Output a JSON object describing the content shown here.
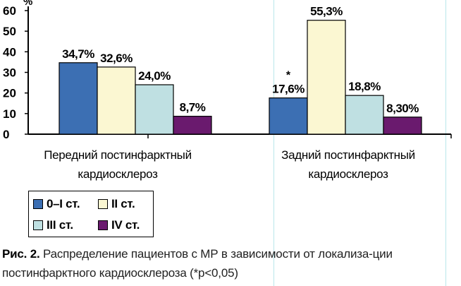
{
  "chart_data": {
    "type": "bar",
    "y_unit_label": "%",
    "ylim": [
      0,
      60
    ],
    "yticks": [
      0,
      10,
      20,
      30,
      40,
      50,
      60
    ],
    "grid": false,
    "categories": [
      [
        "Передний постинфарктный",
        "кардиосклероз"
      ],
      [
        "Задний постинфарктный",
        "кардиосклероз"
      ]
    ],
    "series": [
      {
        "name": "0–I ст.",
        "color": "#3c6fb3",
        "values": [
          34.7,
          17.6
        ],
        "labels": [
          "34,7%",
          "17,6%"
        ]
      },
      {
        "name": "II ст.",
        "color": "#fbf7d2",
        "values": [
          32.6,
          55.3
        ],
        "labels": [
          "32,6%",
          "55,3%"
        ]
      },
      {
        "name": "III ст.",
        "color": "#bfe0e2",
        "values": [
          24.0,
          18.8
        ],
        "labels": [
          "24,0%",
          "18,8%"
        ]
      },
      {
        "name": "IV ст.",
        "color": "#6a1a6e",
        "values": [
          8.7,
          8.3
        ],
        "labels": [
          "8,7%",
          "8,30%"
        ]
      }
    ],
    "annotations": [
      {
        "text": "*",
        "category": 1,
        "series": 0
      }
    ],
    "legend_position": "bottom-left"
  },
  "caption": {
    "prefix": "Рис. 2.",
    "text": " Распределение пациентов с МР в зависимости от локализа-ции постинфарктного кардиосклероза (*p<0,05)"
  }
}
